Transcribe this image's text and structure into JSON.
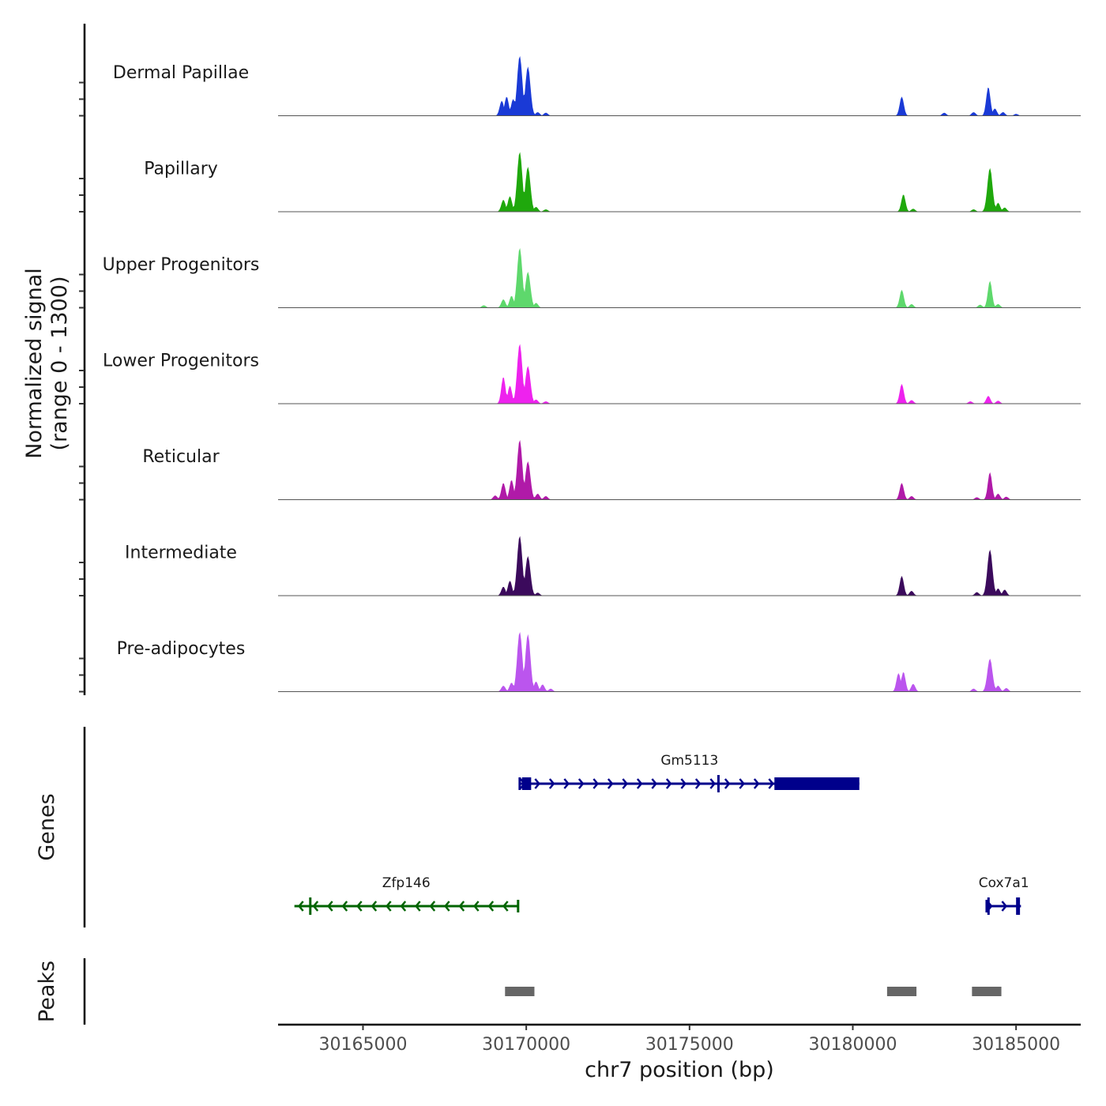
{
  "chart_data": {
    "type": "area",
    "title": "",
    "xlabel": "chr7 position (bp)",
    "ylabel_line1": "Normalized signal",
    "ylabel_line2": "(range 0 - 1300)",
    "xlim": [
      30162400,
      30186980
    ],
    "ylim": [
      0,
      1300
    ],
    "x_ticks": [
      30165000,
      30170000,
      30175000,
      30180000,
      30185000
    ],
    "x_tick_labels": [
      "30165000",
      "30170000",
      "30175000",
      "30180000",
      "30185000"
    ],
    "tracks": [
      {
        "name": "Dermal Papillae",
        "color": "#1a3ad6",
        "peaks": [
          [
            30169250,
            0.25
          ],
          [
            30169400,
            0.32
          ],
          [
            30169600,
            0.28
          ],
          [
            30169800,
            1.0
          ],
          [
            30170050,
            0.82
          ],
          [
            30170350,
            0.06
          ],
          [
            30170600,
            0.05
          ],
          [
            30181500,
            0.32
          ],
          [
            30182800,
            0.05
          ],
          [
            30183700,
            0.06
          ],
          [
            30184150,
            0.48
          ],
          [
            30184350,
            0.12
          ],
          [
            30184600,
            0.06
          ],
          [
            30185000,
            0.03
          ]
        ]
      },
      {
        "name": "Papillary",
        "color": "#1fa80c",
        "peaks": [
          [
            30169300,
            0.2
          ],
          [
            30169500,
            0.26
          ],
          [
            30169800,
            1.0
          ],
          [
            30170050,
            0.75
          ],
          [
            30170300,
            0.08
          ],
          [
            30170600,
            0.04
          ],
          [
            30181550,
            0.29
          ],
          [
            30181850,
            0.05
          ],
          [
            30183700,
            0.04
          ],
          [
            30184200,
            0.73
          ],
          [
            30184450,
            0.15
          ],
          [
            30184650,
            0.07
          ]
        ]
      },
      {
        "name": "Upper Progenitors",
        "color": "#5ed86c",
        "peaks": [
          [
            30168700,
            0.04
          ],
          [
            30169300,
            0.14
          ],
          [
            30169550,
            0.2
          ],
          [
            30169800,
            1.0
          ],
          [
            30170050,
            0.6
          ],
          [
            30170300,
            0.08
          ],
          [
            30181500,
            0.3
          ],
          [
            30181800,
            0.06
          ],
          [
            30183900,
            0.05
          ],
          [
            30184200,
            0.45
          ],
          [
            30184450,
            0.06
          ]
        ]
      },
      {
        "name": "Lower Progenitors",
        "color": "#ee22ee",
        "peaks": [
          [
            30169300,
            0.45
          ],
          [
            30169500,
            0.3
          ],
          [
            30169800,
            1.0
          ],
          [
            30170050,
            0.63
          ],
          [
            30170300,
            0.07
          ],
          [
            30170600,
            0.04
          ],
          [
            30181500,
            0.33
          ],
          [
            30181800,
            0.06
          ],
          [
            30183600,
            0.04
          ],
          [
            30184150,
            0.13
          ],
          [
            30184450,
            0.05
          ]
        ]
      },
      {
        "name": "Reticular",
        "color": "#b01aa8",
        "peaks": [
          [
            30169050,
            0.07
          ],
          [
            30169300,
            0.28
          ],
          [
            30169550,
            0.33
          ],
          [
            30169800,
            1.0
          ],
          [
            30170050,
            0.64
          ],
          [
            30170350,
            0.1
          ],
          [
            30170600,
            0.06
          ],
          [
            30181500,
            0.28
          ],
          [
            30181800,
            0.06
          ],
          [
            30183800,
            0.04
          ],
          [
            30184200,
            0.46
          ],
          [
            30184450,
            0.1
          ],
          [
            30184700,
            0.05
          ]
        ]
      },
      {
        "name": "Intermediate",
        "color": "#3b0a5c",
        "peaks": [
          [
            30169300,
            0.15
          ],
          [
            30169500,
            0.25
          ],
          [
            30169800,
            1.0
          ],
          [
            30170050,
            0.66
          ],
          [
            30170350,
            0.05
          ],
          [
            30181500,
            0.33
          ],
          [
            30181800,
            0.08
          ],
          [
            30183800,
            0.06
          ],
          [
            30184200,
            0.77
          ],
          [
            30184450,
            0.12
          ],
          [
            30184650,
            0.1
          ]
        ]
      },
      {
        "name": "Pre-adipocytes",
        "color": "#bb55ee",
        "peaks": [
          [
            30169300,
            0.1
          ],
          [
            30169550,
            0.15
          ],
          [
            30169800,
            1.0
          ],
          [
            30170050,
            0.96
          ],
          [
            30170300,
            0.17
          ],
          [
            30170500,
            0.12
          ],
          [
            30170750,
            0.05
          ],
          [
            30181400,
            0.31
          ],
          [
            30181550,
            0.33
          ],
          [
            30181850,
            0.13
          ],
          [
            30183700,
            0.05
          ],
          [
            30184200,
            0.55
          ],
          [
            30184450,
            0.1
          ],
          [
            30184700,
            0.06
          ]
        ]
      }
    ],
    "genes_panel_label": "Genes",
    "genes": [
      {
        "name": "Gm5113",
        "strand": "+",
        "color": "#00008b",
        "start": 30169800,
        "end": 30180200,
        "exons": [
          [
            30169870,
            30170150
          ],
          [
            30175850,
            30175900
          ],
          [
            30177600,
            30180200
          ]
        ],
        "row": 1
      },
      {
        "name": "Zfp146",
        "strand": "-",
        "color": "#006400",
        "start": 30162900,
        "end": 30169750,
        "exons": [
          [
            30163350,
            30163400
          ]
        ],
        "row": 2
      },
      {
        "name": "Cox7a1",
        "strand": "+",
        "color": "#00008b",
        "start": 30184100,
        "end": 30185150,
        "exons": [
          [
            30184120,
            30184170
          ],
          [
            30185000,
            30185120
          ]
        ],
        "row": 2
      }
    ],
    "peaks_panel_label": "Peaks",
    "peaks_color": "#666666",
    "peak_regions": [
      [
        30169350,
        30170250
      ],
      [
        30181050,
        30181950
      ],
      [
        30183650,
        30184550
      ]
    ]
  }
}
